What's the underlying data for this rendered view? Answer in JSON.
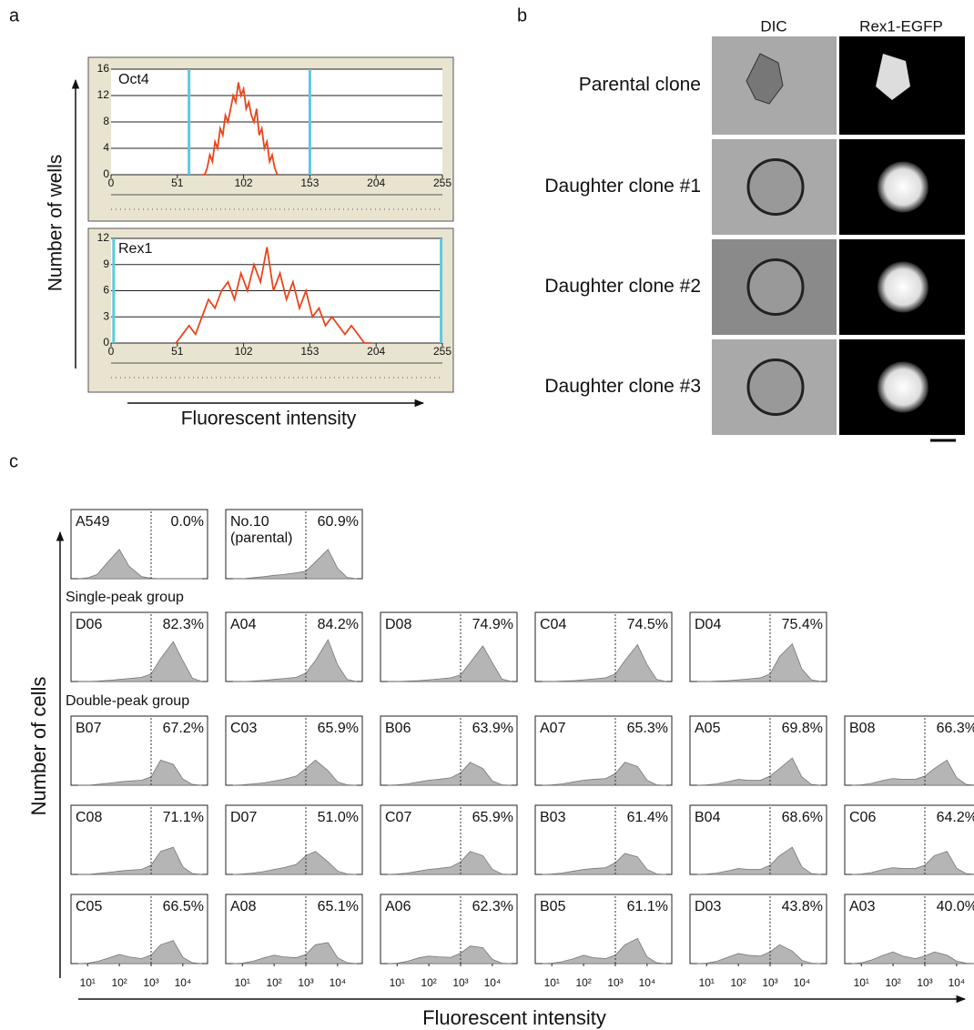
{
  "panel_labels": [
    "a",
    "b",
    "c"
  ],
  "panel_a": {
    "y_label": "Number of wells",
    "x_label": "Fluorescent intensity"
  },
  "panel_b": {
    "columns": [
      "DIC",
      "Rex1-EGFP"
    ],
    "rows": [
      "Parental clone",
      "Daughter clone #1",
      "Daughter clone #2",
      "Daughter clone #3"
    ]
  },
  "chart_data": [
    {
      "type": "line",
      "title": "Oct4",
      "color": "#e8461c",
      "gate_color": "#5ec8db",
      "gates": [
        60,
        153
      ],
      "xlim": [
        0,
        255
      ],
      "ylim": [
        0,
        16
      ],
      "xticks": [
        0,
        51,
        102,
        153,
        204,
        255
      ],
      "yticks": [
        0,
        4,
        8,
        12,
        16
      ],
      "x": [
        70,
        72,
        74,
        76,
        78,
        80,
        82,
        84,
        86,
        88,
        90,
        92,
        94,
        96,
        98,
        100,
        102,
        104,
        106,
        108,
        110,
        112,
        114,
        116,
        118,
        120,
        122,
        124,
        126,
        128
      ],
      "values": [
        0,
        0,
        1,
        3,
        2,
        5,
        4,
        7,
        6,
        9,
        8,
        10,
        12,
        11,
        14,
        12,
        13,
        10,
        11,
        9,
        8,
        10,
        6,
        7,
        4,
        5,
        2,
        3,
        1,
        0
      ]
    },
    {
      "type": "line",
      "title": "Rex1",
      "color": "#e8461c",
      "gate_color": "#5ec8db",
      "gates": [
        2,
        254
      ],
      "xlim": [
        0,
        255
      ],
      "ylim": [
        0,
        12
      ],
      "xticks": [
        0,
        51,
        102,
        153,
        204,
        255
      ],
      "yticks": [
        0,
        3,
        6,
        9,
        12
      ],
      "x": [
        50,
        55,
        60,
        65,
        70,
        75,
        80,
        85,
        90,
        95,
        100,
        105,
        110,
        115,
        120,
        125,
        130,
        135,
        140,
        145,
        150,
        155,
        160,
        165,
        170,
        175,
        180,
        185,
        190,
        195,
        200
      ],
      "values": [
        0,
        1,
        2,
        1,
        3,
        5,
        4,
        6,
        7,
        5,
        8,
        6,
        9,
        7,
        11,
        6,
        8,
        5,
        7,
        4,
        6,
        3,
        4,
        2,
        3,
        2,
        1,
        2,
        1,
        0,
        0
      ]
    },
    {
      "type": "area",
      "y_label": "Number of cells",
      "x_label": "Fluorescent intensity",
      "log_x": true,
      "color": "#b5b5b5",
      "gate": 1000,
      "xlim": [
        3,
        60000
      ],
      "ylim": [
        0,
        100
      ],
      "xticks": [
        {
          "value": 10,
          "label": "10¹"
        },
        {
          "value": 100,
          "label": "10²"
        },
        {
          "value": 1000,
          "label": "10³"
        },
        {
          "value": 10000,
          "label": "10⁴"
        }
      ],
      "x": [
        5,
        10,
        20,
        50,
        100,
        200,
        500,
        1000,
        2000,
        5000,
        10000,
        20000,
        40000
      ],
      "rows": [
        {
          "panels": [
            {
              "name": "A549",
              "value": 0.0,
              "value_label": "0.0%",
              "values": [
                0,
                2,
                10,
                45,
                70,
                30,
                5,
                1,
                0,
                0,
                0,
                0,
                0
              ]
            },
            {
              "name": "No.10",
              "note": "(parental)",
              "value": 60.9,
              "value_label": "60.9%",
              "values": [
                0,
                0,
                2,
                5,
                8,
                10,
                14,
                18,
                40,
                70,
                25,
                3,
                0
              ]
            }
          ]
        },
        {
          "group": "Single-peak group",
          "panels": [
            {
              "name": "D06",
              "value": 82.3,
              "value_label": "82.3%",
              "values": [
                0,
                0,
                1,
                3,
                5,
                7,
                10,
                18,
                55,
                95,
                50,
                8,
                0
              ]
            },
            {
              "name": "A04",
              "value": 84.2,
              "value_label": "84.2%",
              "values": [
                0,
                0,
                1,
                3,
                5,
                7,
                10,
                20,
                50,
                100,
                40,
                5,
                0
              ]
            },
            {
              "name": "D08",
              "value": 74.9,
              "value_label": "74.9%",
              "values": [
                0,
                0,
                1,
                2,
                4,
                6,
                9,
                16,
                45,
                85,
                45,
                6,
                0
              ]
            },
            {
              "name": "C04",
              "value": 74.5,
              "value_label": "74.5%",
              "values": [
                0,
                0,
                1,
                2,
                4,
                6,
                9,
                18,
                50,
                88,
                40,
                5,
                0
              ]
            },
            {
              "name": "D04",
              "value": 75.4,
              "value_label": "75.4%",
              "values": [
                0,
                0,
                1,
                2,
                4,
                6,
                9,
                18,
                60,
                90,
                30,
                4,
                0
              ]
            }
          ]
        },
        {
          "group": "Double-peak group",
          "panels": [
            {
              "name": "B07",
              "value": 67.2,
              "value_label": "67.2%",
              "values": [
                0,
                0,
                2,
                5,
                8,
                10,
                12,
                20,
                60,
                50,
                15,
                2,
                0
              ]
            },
            {
              "name": "C03",
              "value": 65.9,
              "value_label": "65.9%",
              "values": [
                0,
                1,
                3,
                6,
                10,
                14,
                22,
                40,
                60,
                35,
                8,
                1,
                0
              ]
            },
            {
              "name": "B06",
              "value": 63.9,
              "value_label": "63.9%",
              "values": [
                0,
                1,
                3,
                8,
                12,
                14,
                18,
                30,
                55,
                40,
                10,
                1,
                0
              ]
            },
            {
              "name": "A07",
              "value": 65.3,
              "value_label": "65.3%",
              "values": [
                0,
                1,
                3,
                8,
                12,
                14,
                16,
                28,
                55,
                45,
                12,
                1,
                0
              ]
            },
            {
              "name": "A05",
              "value": 69.8,
              "value_label": "69.8%",
              "values": [
                0,
                1,
                3,
                9,
                14,
                12,
                12,
                22,
                40,
                65,
                20,
                2,
                0
              ]
            },
            {
              "name": "B08",
              "value": 66.3,
              "value_label": "66.3%",
              "values": [
                0,
                1,
                4,
                12,
                16,
                14,
                14,
                22,
                40,
                60,
                18,
                2,
                0
              ]
            }
          ]
        },
        {
          "panels": [
            {
              "name": "C08",
              "value": 71.1,
              "value_label": "71.1%",
              "values": [
                0,
                0,
                2,
                5,
                8,
                10,
                12,
                22,
                55,
                65,
                18,
                2,
                0
              ]
            },
            {
              "name": "D07",
              "value": 51.0,
              "value_label": "51.0%",
              "values": [
                0,
                1,
                3,
                7,
                12,
                16,
                24,
                45,
                55,
                30,
                8,
                1,
                0
              ]
            },
            {
              "name": "C07",
              "value": 65.9,
              "value_label": "65.9%",
              "values": [
                0,
                1,
                3,
                8,
                12,
                14,
                18,
                30,
                55,
                45,
                12,
                1,
                0
              ]
            },
            {
              "name": "B03",
              "value": 61.4,
              "value_label": "61.4%",
              "values": [
                0,
                1,
                3,
                8,
                12,
                14,
                16,
                28,
                50,
                42,
                12,
                1,
                0
              ]
            },
            {
              "name": "B04",
              "value": 68.6,
              "value_label": "68.6%",
              "values": [
                0,
                1,
                3,
                9,
                14,
                12,
                12,
                22,
                45,
                65,
                18,
                2,
                0
              ]
            },
            {
              "name": "C06",
              "value": 64.2,
              "value_label": "64.2%",
              "values": [
                0,
                1,
                4,
                12,
                16,
                14,
                14,
                22,
                45,
                55,
                15,
                2,
                0
              ]
            }
          ]
        },
        {
          "panels": [
            {
              "name": "C05",
              "value": 66.5,
              "value_label": "66.5%",
              "values": [
                0,
                1,
                5,
                14,
                22,
                16,
                12,
                20,
                45,
                55,
                15,
                2,
                0
              ]
            },
            {
              "name": "A08",
              "value": 65.1,
              "value_label": "65.1%",
              "values": [
                0,
                1,
                5,
                14,
                20,
                16,
                14,
                22,
                45,
                50,
                14,
                2,
                0
              ]
            },
            {
              "name": "A06",
              "value": 62.3,
              "value_label": "62.3%",
              "values": [
                0,
                1,
                5,
                14,
                18,
                16,
                15,
                25,
                42,
                38,
                10,
                1,
                0
              ]
            },
            {
              "name": "B05",
              "value": 61.1,
              "value_label": "61.1%",
              "values": [
                0,
                1,
                4,
                12,
                20,
                14,
                12,
                20,
                45,
                60,
                16,
                2,
                0
              ]
            },
            {
              "name": "D03",
              "value": 43.8,
              "value_label": "43.8%",
              "values": [
                0,
                1,
                5,
                16,
                24,
                20,
                18,
                28,
                45,
                30,
                8,
                1,
                0
              ]
            },
            {
              "name": "A03",
              "value": 40.0,
              "value_label": "40.0%",
              "values": [
                0,
                2,
                8,
                20,
                28,
                18,
                12,
                18,
                28,
                20,
                6,
                1,
                0
              ]
            }
          ]
        }
      ]
    }
  ]
}
